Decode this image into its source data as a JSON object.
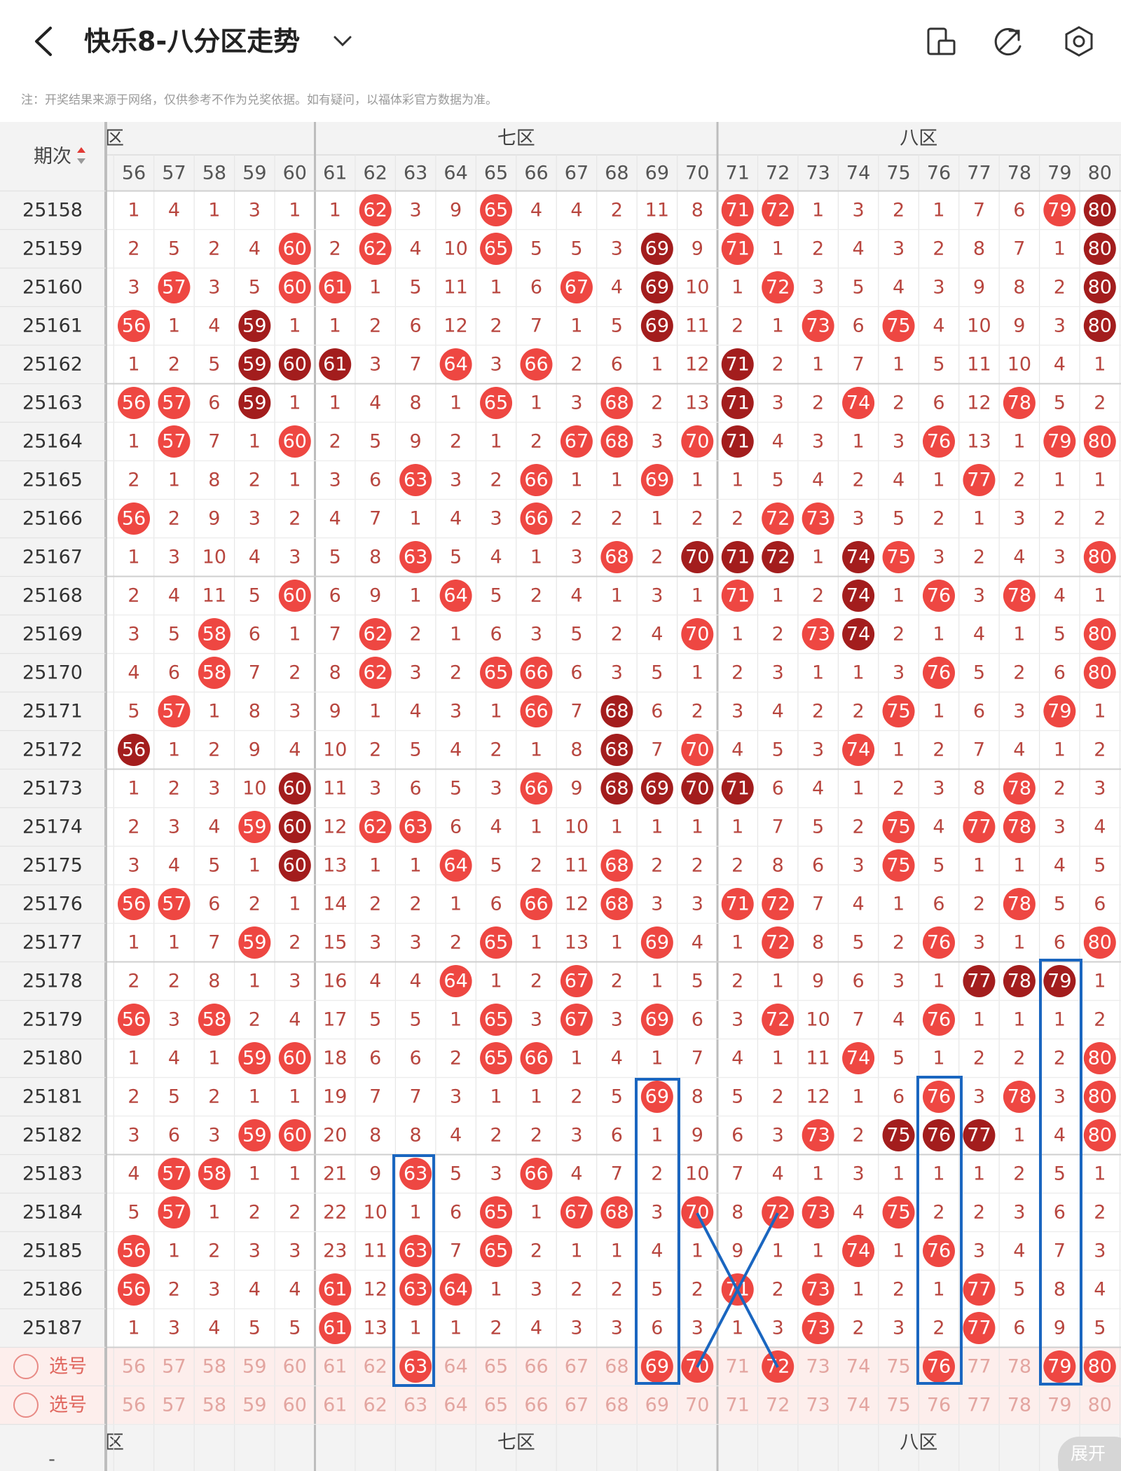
{
  "header": {
    "title": "快乐8-八分区走势",
    "note": "注：开奖结果来源于网络，仅供参考不作为兑奖依据。如有疑问，以福体彩官方数据为准。"
  },
  "table": {
    "corner": "期次",
    "zones": [
      "六区",
      "七区",
      "八区"
    ],
    "columns": [
      "56",
      "57",
      "58",
      "59",
      "60",
      "61",
      "62",
      "63",
      "64",
      "65",
      "66",
      "67",
      "68",
      "69",
      "70",
      "71",
      "72",
      "73",
      "74",
      "75",
      "76",
      "77",
      "78",
      "79",
      "80"
    ],
    "rows": [
      {
        "issue": "25158",
        "cells": [
          "1",
          "4",
          "1",
          "3",
          "1",
          "1",
          "62",
          "3",
          "9",
          "65",
          "4",
          "4",
          "2",
          "11",
          "8",
          "71",
          "72",
          "1",
          "3",
          "2",
          "1",
          "7",
          "6",
          "79",
          "80"
        ],
        "dark": [
          24
        ]
      },
      {
        "issue": "25159",
        "cells": [
          "2",
          "5",
          "2",
          "4",
          "60",
          "2",
          "62",
          "4",
          "10",
          "65",
          "5",
          "5",
          "3",
          "69",
          "9",
          "71",
          "1",
          "2",
          "4",
          "3",
          "2",
          "8",
          "7",
          "1",
          "80"
        ],
        "dark": [
          13,
          24
        ]
      },
      {
        "issue": "25160",
        "cells": [
          "3",
          "57",
          "3",
          "5",
          "60",
          "61",
          "1",
          "5",
          "11",
          "1",
          "6",
          "67",
          "4",
          "69",
          "10",
          "1",
          "72",
          "3",
          "5",
          "4",
          "3",
          "9",
          "8",
          "2",
          "80"
        ],
        "dark": [
          13,
          24
        ]
      },
      {
        "issue": "25161",
        "cells": [
          "56",
          "1",
          "4",
          "59",
          "1",
          "1",
          "2",
          "6",
          "12",
          "2",
          "7",
          "1",
          "5",
          "69",
          "11",
          "2",
          "1",
          "73",
          "6",
          "75",
          "4",
          "10",
          "9",
          "3",
          "80"
        ],
        "dark": [
          3,
          13,
          24
        ]
      },
      {
        "issue": "25162",
        "cells": [
          "1",
          "2",
          "5",
          "59",
          "60",
          "61",
          "3",
          "7",
          "64",
          "3",
          "66",
          "2",
          "6",
          "1",
          "12",
          "71",
          "2",
          "1",
          "7",
          "1",
          "5",
          "11",
          "10",
          "4",
          "1"
        ],
        "dark": [
          3,
          4,
          5,
          15
        ]
      },
      {
        "issue": "25163",
        "cells": [
          "56",
          "57",
          "6",
          "59",
          "1",
          "1",
          "4",
          "8",
          "1",
          "65",
          "1",
          "3",
          "68",
          "2",
          "13",
          "71",
          "3",
          "2",
          "74",
          "2",
          "6",
          "12",
          "78",
          "5",
          "2"
        ],
        "dark": [
          3,
          15
        ]
      },
      {
        "issue": "25164",
        "cells": [
          "1",
          "57",
          "7",
          "1",
          "60",
          "2",
          "5",
          "9",
          "2",
          "1",
          "2",
          "67",
          "68",
          "3",
          "70",
          "71",
          "4",
          "3",
          "1",
          "3",
          "76",
          "13",
          "1",
          "79",
          "80"
        ],
        "dark": [
          15
        ]
      },
      {
        "issue": "25165",
        "cells": [
          "2",
          "1",
          "8",
          "2",
          "1",
          "3",
          "6",
          "63",
          "3",
          "2",
          "66",
          "1",
          "1",
          "69",
          "1",
          "1",
          "5",
          "4",
          "2",
          "4",
          "1",
          "77",
          "2",
          "1",
          "1"
        ],
        "dark": []
      },
      {
        "issue": "25166",
        "cells": [
          "56",
          "2",
          "9",
          "3",
          "2",
          "4",
          "7",
          "1",
          "4",
          "3",
          "66",
          "2",
          "2",
          "1",
          "2",
          "2",
          "72",
          "73",
          "3",
          "5",
          "2",
          "1",
          "3",
          "2",
          "2"
        ],
        "dark": []
      },
      {
        "issue": "25167",
        "cells": [
          "1",
          "3",
          "10",
          "4",
          "3",
          "5",
          "8",
          "63",
          "5",
          "4",
          "1",
          "3",
          "68",
          "2",
          "70",
          "71",
          "72",
          "1",
          "74",
          "75",
          "3",
          "2",
          "4",
          "3",
          "80"
        ],
        "dark": [
          14,
          15,
          16,
          18
        ]
      },
      {
        "issue": "25168",
        "cells": [
          "2",
          "4",
          "11",
          "5",
          "60",
          "6",
          "9",
          "1",
          "64",
          "5",
          "2",
          "4",
          "1",
          "3",
          "1",
          "71",
          "1",
          "2",
          "74",
          "1",
          "76",
          "3",
          "78",
          "4",
          "1"
        ],
        "dark": [
          18
        ]
      },
      {
        "issue": "25169",
        "cells": [
          "3",
          "5",
          "58",
          "6",
          "1",
          "7",
          "62",
          "2",
          "1",
          "6",
          "3",
          "5",
          "2",
          "4",
          "70",
          "1",
          "2",
          "73",
          "74",
          "2",
          "1",
          "4",
          "1",
          "5",
          "80"
        ],
        "dark": [
          18
        ]
      },
      {
        "issue": "25170",
        "cells": [
          "4",
          "6",
          "58",
          "7",
          "2",
          "8",
          "62",
          "3",
          "2",
          "65",
          "66",
          "6",
          "3",
          "5",
          "1",
          "2",
          "3",
          "1",
          "1",
          "3",
          "76",
          "5",
          "2",
          "6",
          "80"
        ],
        "dark": []
      },
      {
        "issue": "25171",
        "cells": [
          "5",
          "57",
          "1",
          "8",
          "3",
          "9",
          "1",
          "4",
          "3",
          "1",
          "66",
          "7",
          "68",
          "6",
          "2",
          "3",
          "4",
          "2",
          "2",
          "75",
          "1",
          "6",
          "3",
          "79",
          "1"
        ],
        "dark": [
          12
        ]
      },
      {
        "issue": "25172",
        "cells": [
          "56",
          "1",
          "2",
          "9",
          "4",
          "10",
          "2",
          "5",
          "4",
          "2",
          "1",
          "8",
          "68",
          "7",
          "70",
          "4",
          "5",
          "3",
          "74",
          "1",
          "2",
          "7",
          "4",
          "1",
          "2"
        ],
        "dark": [
          0,
          12
        ]
      },
      {
        "issue": "25173",
        "cells": [
          "1",
          "2",
          "3",
          "10",
          "60",
          "11",
          "3",
          "6",
          "5",
          "3",
          "66",
          "9",
          "68",
          "69",
          "70",
          "71",
          "6",
          "4",
          "1",
          "2",
          "3",
          "8",
          "78",
          "2",
          "3"
        ],
        "dark": [
          4,
          12,
          13,
          14,
          15
        ]
      },
      {
        "issue": "25174",
        "cells": [
          "2",
          "3",
          "4",
          "59",
          "60",
          "12",
          "62",
          "63",
          "6",
          "4",
          "1",
          "10",
          "1",
          "1",
          "1",
          "1",
          "7",
          "5",
          "2",
          "75",
          "4",
          "77",
          "78",
          "3",
          "4"
        ],
        "dark": [
          4
        ]
      },
      {
        "issue": "25175",
        "cells": [
          "3",
          "4",
          "5",
          "1",
          "60",
          "13",
          "1",
          "1",
          "64",
          "5",
          "2",
          "11",
          "68",
          "2",
          "2",
          "2",
          "8",
          "6",
          "3",
          "75",
          "5",
          "1",
          "1",
          "4",
          "5"
        ],
        "dark": [
          4
        ]
      },
      {
        "issue": "25176",
        "cells": [
          "56",
          "57",
          "6",
          "2",
          "1",
          "14",
          "2",
          "2",
          "1",
          "6",
          "66",
          "12",
          "68",
          "3",
          "3",
          "71",
          "72",
          "7",
          "4",
          "1",
          "6",
          "2",
          "78",
          "5",
          "6"
        ],
        "dark": []
      },
      {
        "issue": "25177",
        "cells": [
          "1",
          "1",
          "7",
          "59",
          "2",
          "15",
          "3",
          "3",
          "2",
          "65",
          "1",
          "13",
          "1",
          "69",
          "4",
          "1",
          "72",
          "8",
          "5",
          "2",
          "76",
          "3",
          "1",
          "6",
          "80"
        ],
        "dark": []
      },
      {
        "issue": "25178",
        "cells": [
          "2",
          "2",
          "8",
          "1",
          "3",
          "16",
          "4",
          "4",
          "64",
          "1",
          "2",
          "67",
          "2",
          "1",
          "5",
          "2",
          "1",
          "9",
          "6",
          "3",
          "1",
          "77",
          "78",
          "79",
          "1"
        ],
        "dark": [
          21,
          22,
          23
        ]
      },
      {
        "issue": "25179",
        "cells": [
          "56",
          "3",
          "58",
          "2",
          "4",
          "17",
          "5",
          "5",
          "1",
          "65",
          "3",
          "67",
          "3",
          "69",
          "6",
          "3",
          "72",
          "10",
          "7",
          "4",
          "76",
          "1",
          "1",
          "1",
          "2"
        ],
        "dark": []
      },
      {
        "issue": "25180",
        "cells": [
          "1",
          "4",
          "1",
          "59",
          "60",
          "18",
          "6",
          "6",
          "2",
          "65",
          "66",
          "1",
          "4",
          "1",
          "7",
          "4",
          "1",
          "11",
          "74",
          "5",
          "1",
          "2",
          "2",
          "2",
          "80"
        ],
        "dark": []
      },
      {
        "issue": "25181",
        "cells": [
          "2",
          "5",
          "2",
          "1",
          "1",
          "19",
          "7",
          "7",
          "3",
          "1",
          "1",
          "2",
          "5",
          "69",
          "8",
          "5",
          "2",
          "12",
          "1",
          "6",
          "76",
          "3",
          "78",
          "3",
          "80"
        ],
        "dark": []
      },
      {
        "issue": "25182",
        "cells": [
          "3",
          "6",
          "3",
          "59",
          "60",
          "20",
          "8",
          "8",
          "4",
          "2",
          "2",
          "3",
          "6",
          "1",
          "9",
          "6",
          "3",
          "73",
          "2",
          "75",
          "76",
          "77",
          "1",
          "4",
          "80"
        ],
        "dark": [
          19,
          20,
          21
        ]
      },
      {
        "issue": "25183",
        "cells": [
          "4",
          "57",
          "58",
          "1",
          "1",
          "21",
          "9",
          "63",
          "5",
          "3",
          "66",
          "4",
          "7",
          "2",
          "10",
          "7",
          "4",
          "1",
          "3",
          "1",
          "1",
          "1",
          "2",
          "5",
          "1"
        ],
        "dark": []
      },
      {
        "issue": "25184",
        "cells": [
          "5",
          "57",
          "1",
          "2",
          "2",
          "22",
          "10",
          "1",
          "6",
          "65",
          "1",
          "67",
          "68",
          "3",
          "70",
          "8",
          "72",
          "73",
          "4",
          "75",
          "2",
          "2",
          "3",
          "6",
          "2"
        ],
        "dark": []
      },
      {
        "issue": "25185",
        "cells": [
          "56",
          "1",
          "2",
          "3",
          "3",
          "23",
          "11",
          "63",
          "7",
          "65",
          "2",
          "1",
          "1",
          "4",
          "1",
          "9",
          "1",
          "1",
          "74",
          "1",
          "76",
          "3",
          "4",
          "7",
          "3"
        ],
        "dark": []
      },
      {
        "issue": "25186",
        "cells": [
          "56",
          "2",
          "3",
          "4",
          "4",
          "61",
          "12",
          "63",
          "64",
          "1",
          "3",
          "2",
          "2",
          "5",
          "2",
          "71",
          "2",
          "73",
          "1",
          "2",
          "1",
          "77",
          "5",
          "8",
          "4"
        ],
        "dark": []
      },
      {
        "issue": "25187",
        "cells": [
          "1",
          "3",
          "4",
          "5",
          "5",
          "61",
          "13",
          "1",
          "1",
          "2",
          "4",
          "3",
          "3",
          "6",
          "3",
          "1",
          "3",
          "73",
          "2",
          "3",
          "2",
          "77",
          "6",
          "9",
          "5"
        ],
        "dark": []
      }
    ],
    "pick_rows": [
      {
        "label": "选号",
        "cells": [
          "56",
          "57",
          "58",
          "59",
          "60",
          "61",
          "62",
          "63",
          "64",
          "65",
          "66",
          "67",
          "68",
          "69",
          "70",
          "71",
          "72",
          "73",
          "74",
          "75",
          "76",
          "77",
          "78",
          "79",
          "80"
        ],
        "picked": [
          7,
          13,
          14,
          16,
          20,
          23,
          24
        ]
      },
      {
        "label": "选号",
        "cells": [
          "56",
          "57",
          "58",
          "59",
          "60",
          "61",
          "62",
          "63",
          "64",
          "65",
          "66",
          "67",
          "68",
          "69",
          "70",
          "71",
          "72",
          "73",
          "74",
          "75",
          "76",
          "77",
          "78",
          "79",
          "80"
        ],
        "picked": []
      }
    ]
  },
  "footer": {
    "dash": "-",
    "zones": [
      "六区",
      "七区",
      "八区"
    ],
    "expand": "展开"
  }
}
